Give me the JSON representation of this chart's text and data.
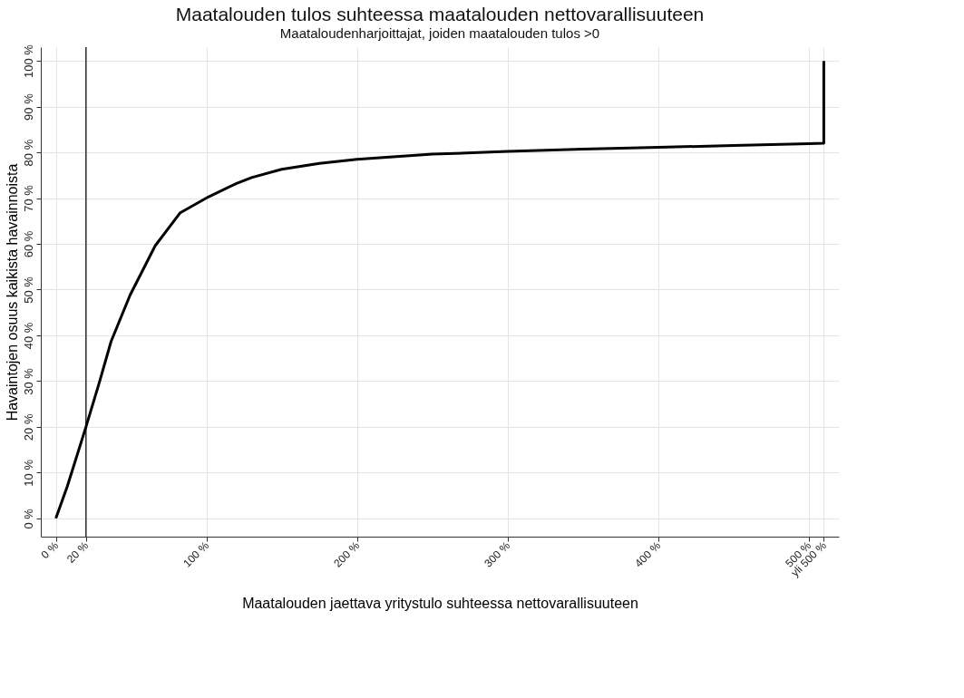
{
  "chart_data": {
    "type": "line",
    "title": "Maatalouden tulos suhteessa maatalouden nettovarallisuuteen",
    "subtitle": "Maataloudenharjoittajat, joiden maatalouden tulos >0",
    "xlabel": "Maatalouden jaettava yritystulo suhteessa nettovarallisuuteen",
    "ylabel": "Havaintojen osuus kaikista havainnoista",
    "series": [
      {
        "color": "#000000",
        "x": [
          0,
          7.6,
          20,
          28.6,
          36.7,
          49.3,
          66,
          82.6,
          101.5,
          120,
          130,
          150,
          175,
          200,
          250,
          300,
          350,
          400,
          450,
          500,
          510,
          510
        ],
        "values": [
          0,
          7,
          20,
          29.4,
          38.7,
          48.8,
          59.6,
          66.8,
          70.3,
          73.2,
          74.5,
          76.3,
          77.6,
          78.5,
          79.6,
          80.2,
          80.7,
          81.1,
          81.5,
          81.9,
          82,
          100
        ]
      }
    ],
    "xlim": [
      -10,
      520
    ],
    "ylim": [
      -4,
      103
    ],
    "xticks": [
      {
        "value": 0,
        "label": "0 %"
      },
      {
        "value": 20,
        "label": "20 %"
      },
      {
        "value": 100,
        "label": "100 %"
      },
      {
        "value": 200,
        "label": "200 %"
      },
      {
        "value": 300,
        "label": "300 %"
      },
      {
        "value": 400,
        "label": "400 %"
      },
      {
        "value": 500,
        "label": "500 %"
      },
      {
        "value": 510,
        "label": "yli 500 %"
      }
    ],
    "yticks": [
      {
        "value": 0,
        "label": "0 %"
      },
      {
        "value": 10,
        "label": "10 %"
      },
      {
        "value": 20,
        "label": "20 %"
      },
      {
        "value": 30,
        "label": "30 %"
      },
      {
        "value": 40,
        "label": "40 %"
      },
      {
        "value": 50,
        "label": "50 %"
      },
      {
        "value": 60,
        "label": "60 %"
      },
      {
        "value": 70,
        "label": "70 %"
      },
      {
        "value": 80,
        "label": "80 %"
      },
      {
        "value": 90,
        "label": "90 %"
      },
      {
        "value": 100,
        "label": "100 %"
      }
    ],
    "ref_lines": [
      {
        "axis": "x",
        "value": 20,
        "color": "#000000"
      }
    ],
    "grid": true,
    "marker": "none",
    "line_style": "solid"
  }
}
